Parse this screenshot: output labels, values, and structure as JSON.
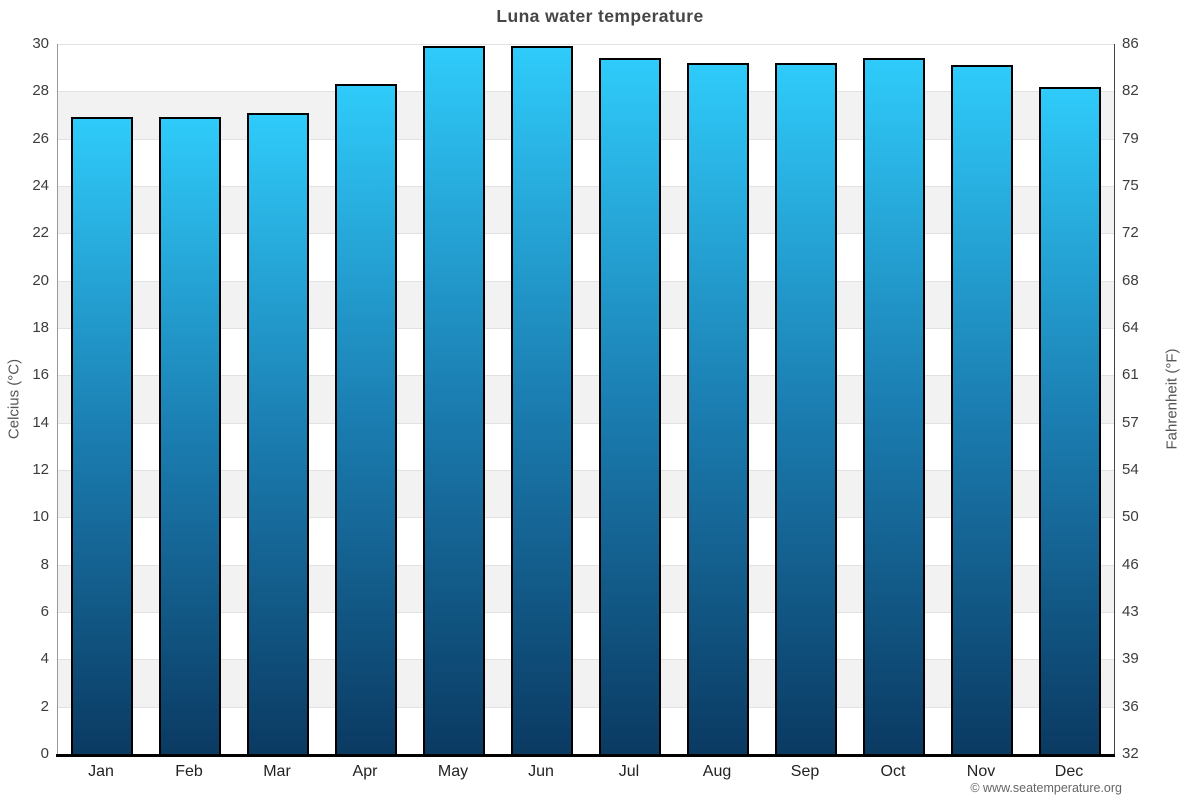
{
  "title": "Luna water temperature",
  "footer": "© www.seatemperature.org",
  "chart_data": {
    "type": "bar",
    "title": "Luna water temperature",
    "categories": [
      "Jan",
      "Feb",
      "Mar",
      "Apr",
      "May",
      "Jun",
      "Jul",
      "Aug",
      "Sep",
      "Oct",
      "Nov",
      "Dec"
    ],
    "values": [
      26.9,
      26.9,
      27.1,
      28.3,
      29.9,
      29.9,
      29.4,
      29.2,
      29.2,
      29.4,
      29.1,
      28.2
    ],
    "unit": "°C",
    "ylabel_left": "Celcius (°C)",
    "ylabel_right": "Fahrenheit (°F)",
    "ylim": [
      0,
      30
    ],
    "celsius_ticks": [
      30,
      28,
      26,
      24,
      22,
      20,
      18,
      16,
      14,
      12,
      10,
      8,
      6,
      4,
      2,
      0
    ],
    "fahrenheit_ticks": [
      86,
      82,
      79,
      75,
      72,
      68,
      64,
      61,
      57,
      54,
      50,
      46,
      43,
      39,
      36,
      32
    ],
    "grid": "horizontal gridlines with alternating shaded bands",
    "legend": "none"
  },
  "colors": {
    "bar_gradient_top": "#2fcbfa",
    "bar_gradient_mid": "#1b7db1",
    "bar_gradient_bottom": "#0a3a62",
    "bar_border": "#000000",
    "band_shade": "#f2f2f2",
    "gridline": "#e2e2e2",
    "x_axis_line": "#000000",
    "title_text": "#464646",
    "tick_text": "#3c3c3c",
    "axis_title_text": "#555555",
    "footer_text": "#666666"
  }
}
